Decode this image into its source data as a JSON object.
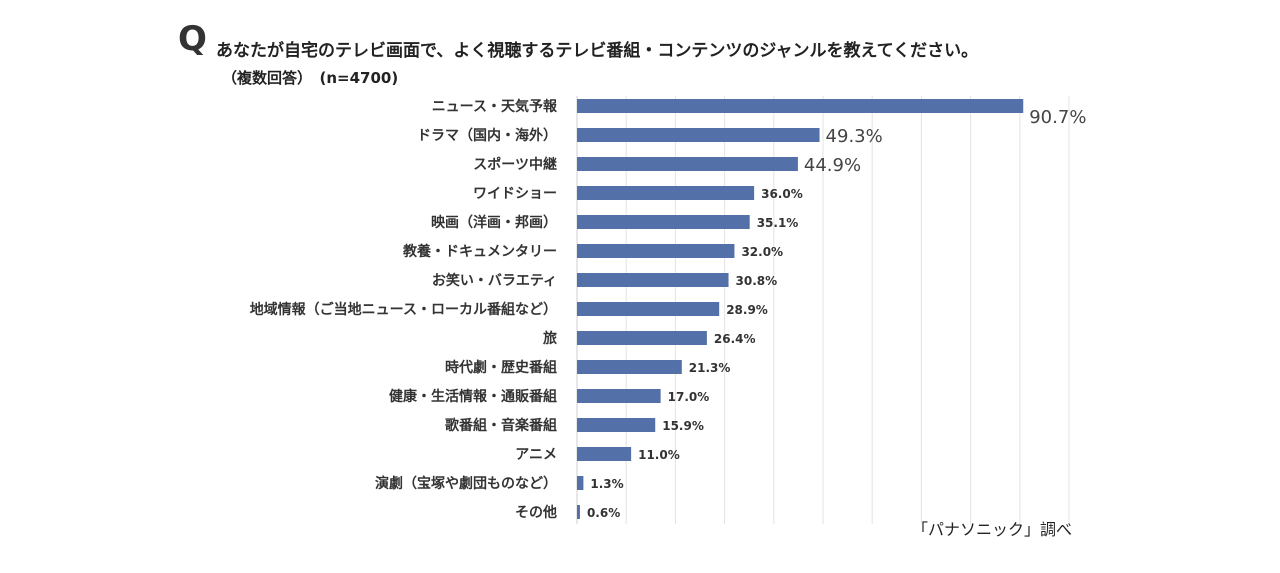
{
  "header": {
    "q_mark": "Q",
    "question": "あなたが自宅のテレビ画面で、よく視聴するテレビ番組・コンテンツのジャンルを教えてください。",
    "note": "（複数回答）　(n=4700)"
  },
  "footer": {
    "source": "「パナソニック」調べ"
  },
  "chart_data": {
    "type": "bar",
    "orientation": "horizontal",
    "categories": [
      "ニュース・天気予報",
      "ドラマ（国内・海外）",
      "スポーツ中継",
      "ワイドショー",
      "映画（洋画・邦画）",
      "教養・ドキュメンタリー",
      "お笑い・バラエティ",
      "地域情報（ご当地ニュース・ローカル番組など）",
      "旅",
      "時代劇・歴史番組",
      "健康・生活情報・通販番組",
      "歌番組・音楽番組",
      "アニメ",
      "演劇（宝塚や劇団ものなど）",
      "その他"
    ],
    "values": [
      90.7,
      49.3,
      44.9,
      36.0,
      35.1,
      32.0,
      30.8,
      28.9,
      26.4,
      21.3,
      17.0,
      15.9,
      11.0,
      1.3,
      0.6
    ],
    "value_labels": [
      "90.7%",
      "49.3%",
      "44.9%",
      "36.0%",
      "35.1%",
      "32.0%",
      "30.8%",
      "28.9%",
      "26.4%",
      "21.3%",
      "17.0%",
      "15.9%",
      "11.0%",
      "1.3%",
      "0.6%"
    ],
    "xlim": [
      0,
      100
    ],
    "grid": true,
    "bar_color": "#5470a8",
    "grid_color": "#e3e3e3"
  }
}
